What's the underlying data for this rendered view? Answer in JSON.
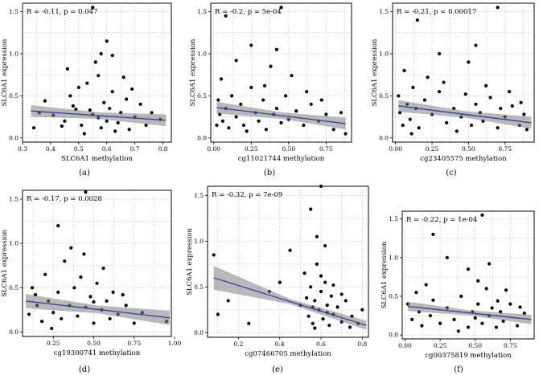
{
  "chart_data": [
    {
      "id": "a",
      "type": "scatter",
      "panel_label": "(a)",
      "annotation": "R = -0.11, p = 0.047",
      "xlabel": "SLC6A1 methylation",
      "ylabel": "SLC6A1 expression",
      "xlim": [
        0.3,
        0.83
      ],
      "ylim": [
        -0.05,
        1.6
      ],
      "xticks": [
        0.3,
        0.4,
        0.5,
        0.6,
        0.7,
        0.8
      ],
      "xtick_labels": [
        "0.3",
        "0.4",
        "0.5",
        "0.6",
        "0.7",
        "0.8"
      ],
      "yticks": [
        0.0,
        0.5,
        1.0,
        1.5
      ],
      "ytick_labels": [
        "0.0",
        "0.5",
        "1.0",
        "1.5"
      ],
      "fit": {
        "x": [
          0.33,
          0.81
        ],
        "y": [
          0.32,
          0.21
        ],
        "ci": 0.07
      },
      "points": [
        [
          0.34,
          0.12
        ],
        [
          0.38,
          0.44
        ],
        [
          0.41,
          0.27
        ],
        [
          0.45,
          0.2
        ],
        [
          0.47,
          0.5
        ],
        [
          0.49,
          0.34
        ],
        [
          0.51,
          0.15
        ],
        [
          0.53,
          0.65
        ],
        [
          0.55,
          0.28
        ],
        [
          0.56,
          0.9
        ],
        [
          0.58,
          0.12
        ],
        [
          0.59,
          0.42
        ],
        [
          0.6,
          0.2
        ],
        [
          0.61,
          0.35
        ],
        [
          0.62,
          0.55
        ],
        [
          0.64,
          0.18
        ],
        [
          0.65,
          0.3
        ],
        [
          0.66,
          0.72
        ],
        [
          0.68,
          0.1
        ],
        [
          0.7,
          0.25
        ],
        [
          0.72,
          0.4
        ],
        [
          0.74,
          0.15
        ],
        [
          0.76,
          0.3
        ],
        [
          0.79,
          0.22
        ],
        [
          0.36,
          0.3
        ],
        [
          0.52,
          0.05
        ],
        [
          0.57,
          0.24
        ],
        [
          0.63,
          0.08
        ],
        [
          0.67,
          0.46
        ],
        [
          0.48,
          0.38
        ],
        [
          0.54,
          0.33
        ],
        [
          0.6,
          1.15
        ],
        [
          0.55,
          1.55
        ],
        [
          0.58,
          1.0
        ],
        [
          0.46,
          0.82
        ],
        [
          0.69,
          0.58
        ],
        [
          0.5,
          0.6
        ],
        [
          0.62,
          0.98
        ],
        [
          0.57,
          0.74
        ],
        [
          0.44,
          0.14
        ]
      ]
    },
    {
      "id": "b",
      "type": "scatter",
      "panel_label": "(b)",
      "annotation": "R = -0.2, p = 5e-04",
      "xlabel": "cg11021744 methylation",
      "ylabel": "SLC6A1 expression",
      "xlim": [
        -0.02,
        0.92
      ],
      "ylim": [
        -0.05,
        1.6
      ],
      "xticks": [
        0.0,
        0.25,
        0.5,
        0.75
      ],
      "xtick_labels": [
        "0.00",
        "0.25",
        "0.50",
        "0.75"
      ],
      "yticks": [
        0.0,
        0.5,
        1.0,
        1.5
      ],
      "ytick_labels": [
        "0.0",
        "0.5",
        "1.0",
        "1.5"
      ],
      "fit": {
        "x": [
          0.02,
          0.88
        ],
        "y": [
          0.36,
          0.17
        ],
        "ci": 0.07
      },
      "points": [
        [
          0.02,
          0.15
        ],
        [
          0.03,
          0.45
        ],
        [
          0.04,
          0.28
        ],
        [
          0.05,
          0.7
        ],
        [
          0.06,
          0.2
        ],
        [
          0.08,
          0.35
        ],
        [
          0.1,
          0.12
        ],
        [
          0.12,
          0.5
        ],
        [
          0.15,
          0.25
        ],
        [
          0.18,
          0.4
        ],
        [
          0.2,
          0.15
        ],
        [
          0.25,
          0.6
        ],
        [
          0.28,
          0.3
        ],
        [
          0.3,
          0.2
        ],
        [
          0.33,
          0.45
        ],
        [
          0.35,
          0.1
        ],
        [
          0.38,
          0.85
        ],
        [
          0.4,
          0.28
        ],
        [
          0.42,
          0.35
        ],
        [
          0.45,
          0.18
        ],
        [
          0.48,
          0.5
        ],
        [
          0.5,
          0.22
        ],
        [
          0.55,
          0.32
        ],
        [
          0.6,
          0.15
        ],
        [
          0.65,
          0.4
        ],
        [
          0.7,
          0.2
        ],
        [
          0.75,
          0.28
        ],
        [
          0.8,
          0.1
        ],
        [
          0.85,
          0.3
        ],
        [
          0.88,
          0.05
        ],
        [
          0.08,
          1.45
        ],
        [
          0.25,
          1.1
        ],
        [
          0.45,
          1.55
        ],
        [
          0.15,
          0.92
        ],
        [
          0.52,
          0.74
        ],
        [
          0.34,
          0.62
        ],
        [
          0.22,
          0.08
        ],
        [
          0.62,
          0.55
        ],
        [
          0.72,
          0.45
        ],
        [
          0.42,
          1.05
        ]
      ]
    },
    {
      "id": "c",
      "type": "scatter",
      "panel_label": "(c)",
      "annotation": "R = -0.21, p = 0.00017",
      "xlabel": "cg23405575 methylation",
      "ylabel": "SLC6A1 expression",
      "xlim": [
        -0.02,
        0.95
      ],
      "ylim": [
        -0.05,
        1.6
      ],
      "xticks": [
        0.0,
        0.25,
        0.5,
        0.75
      ],
      "xtick_labels": [
        "0.00",
        "0.25",
        "0.50",
        "0.75"
      ],
      "yticks": [
        0.0,
        0.5,
        1.0,
        1.5
      ],
      "ytick_labels": [
        "0.0",
        "0.5",
        "1.0",
        "1.5"
      ],
      "fit": {
        "x": [
          0.02,
          0.93
        ],
        "y": [
          0.38,
          0.18
        ],
        "ci": 0.07
      },
      "points": [
        [
          0.02,
          0.5
        ],
        [
          0.03,
          0.3
        ],
        [
          0.05,
          0.15
        ],
        [
          0.06,
          0.8
        ],
        [
          0.08,
          0.4
        ],
        [
          0.1,
          0.22
        ],
        [
          0.12,
          0.6
        ],
        [
          0.14,
          0.35
        ],
        [
          0.16,
          0.12
        ],
        [
          0.2,
          0.45
        ],
        [
          0.25,
          0.28
        ],
        [
          0.3,
          0.55
        ],
        [
          0.35,
          0.18
        ],
        [
          0.4,
          0.35
        ],
        [
          0.45,
          0.25
        ],
        [
          0.5,
          0.9
        ],
        [
          0.52,
          0.15
        ],
        [
          0.55,
          0.4
        ],
        [
          0.58,
          0.3
        ],
        [
          0.6,
          0.2
        ],
        [
          0.65,
          0.48
        ],
        [
          0.7,
          0.12
        ],
        [
          0.72,
          0.35
        ],
        [
          0.75,
          0.25
        ],
        [
          0.8,
          0.38
        ],
        [
          0.85,
          0.15
        ],
        [
          0.88,
          0.28
        ],
        [
          0.9,
          0.1
        ],
        [
          0.15,
          1.4
        ],
        [
          0.3,
          1.0
        ],
        [
          0.7,
          1.55
        ],
        [
          0.55,
          1.1
        ],
        [
          0.22,
          0.72
        ],
        [
          0.62,
          0.62
        ],
        [
          0.78,
          0.55
        ],
        [
          0.42,
          0.08
        ],
        [
          0.33,
          0.66
        ],
        [
          0.48,
          0.52
        ],
        [
          0.86,
          0.42
        ],
        [
          0.11,
          0.05
        ]
      ]
    },
    {
      "id": "d",
      "type": "scatter",
      "panel_label": "(d)",
      "annotation": "R = -0.17, p = 0.0028",
      "xlabel": "cg19300741 methylation",
      "ylabel": "SLC6A1 expression",
      "xlim": [
        0.06,
        0.98
      ],
      "ylim": [
        -0.05,
        1.6
      ],
      "xticks": [
        0.25,
        0.5,
        0.75,
        1.0
      ],
      "xtick_labels": [
        "0.25",
        "0.50",
        "0.75",
        "1.00"
      ],
      "yticks": [
        0.0,
        0.5,
        1.0,
        1.5
      ],
      "ytick_labels": [
        "0.0",
        "0.5",
        "1.0",
        "1.5"
      ],
      "fit": {
        "x": [
          0.08,
          0.97
        ],
        "y": [
          0.35,
          0.16
        ],
        "ci": 0.08
      },
      "points": [
        [
          0.1,
          0.2
        ],
        [
          0.12,
          0.5
        ],
        [
          0.15,
          0.3
        ],
        [
          0.18,
          0.12
        ],
        [
          0.2,
          0.65
        ],
        [
          0.22,
          0.35
        ],
        [
          0.25,
          0.22
        ],
        [
          0.28,
          0.45
        ],
        [
          0.3,
          0.15
        ],
        [
          0.32,
          0.8
        ],
        [
          0.35,
          0.3
        ],
        [
          0.38,
          0.5
        ],
        [
          0.4,
          0.18
        ],
        [
          0.42,
          0.62
        ],
        [
          0.45,
          0.28
        ],
        [
          0.48,
          0.4
        ],
        [
          0.5,
          0.1
        ],
        [
          0.52,
          0.55
        ],
        [
          0.55,
          0.25
        ],
        [
          0.58,
          0.35
        ],
        [
          0.6,
          0.15
        ],
        [
          0.62,
          0.45
        ],
        [
          0.65,
          0.2
        ],
        [
          0.7,
          0.3
        ],
        [
          0.75,
          0.1
        ],
        [
          0.8,
          0.22
        ],
        [
          0.95,
          0.12
        ],
        [
          0.28,
          1.2
        ],
        [
          0.45,
          1.58
        ],
        [
          0.36,
          0.95
        ],
        [
          0.24,
          0.04
        ],
        [
          0.44,
          0.88
        ],
        [
          0.56,
          0.72
        ],
        [
          0.68,
          0.42
        ],
        [
          0.14,
          0.42
        ],
        [
          0.5,
          0.34
        ]
      ]
    },
    {
      "id": "e",
      "type": "scatter",
      "panel_label": "(e)",
      "annotation": "R = -0.32, p = 7e-09",
      "xlabel": "cg07466705 methylation",
      "ylabel": "SLC6A1 expression",
      "xlim": [
        0.05,
        0.83
      ],
      "ylim": [
        -0.05,
        1.6
      ],
      "xticks": [
        0.2,
        0.4,
        0.6,
        0.8
      ],
      "xtick_labels": [
        "0.2",
        "0.4",
        "0.6",
        "0.8"
      ],
      "yticks": [
        0.0,
        0.5,
        1.0,
        1.5
      ],
      "ytick_labels": [
        "0.0",
        "0.5",
        "1.0",
        "1.5"
      ],
      "fit": {
        "x": [
          0.08,
          0.82
        ],
        "y": [
          0.6,
          0.08
        ],
        "ci": [
          0.13,
          0.05
        ]
      },
      "points": [
        [
          0.08,
          0.85
        ],
        [
          0.1,
          0.2
        ],
        [
          0.15,
          0.35
        ],
        [
          0.25,
          0.1
        ],
        [
          0.35,
          0.45
        ],
        [
          0.45,
          0.9
        ],
        [
          0.5,
          0.3
        ],
        [
          0.52,
          0.65
        ],
        [
          0.54,
          0.18
        ],
        [
          0.55,
          0.5
        ],
        [
          0.56,
          0.1
        ],
        [
          0.57,
          0.35
        ],
        [
          0.58,
          0.75
        ],
        [
          0.59,
          0.25
        ],
        [
          0.6,
          0.45
        ],
        [
          0.61,
          0.15
        ],
        [
          0.62,
          0.55
        ],
        [
          0.63,
          0.3
        ],
        [
          0.64,
          0.08
        ],
        [
          0.65,
          0.4
        ],
        [
          0.66,
          0.2
        ],
        [
          0.68,
          0.28
        ],
        [
          0.7,
          0.12
        ],
        [
          0.72,
          0.35
        ],
        [
          0.75,
          0.18
        ],
        [
          0.78,
          0.1
        ],
        [
          0.55,
          1.35
        ],
        [
          0.6,
          1.6
        ],
        [
          0.58,
          1.05
        ],
        [
          0.62,
          0.95
        ],
        [
          0.53,
          0.38
        ],
        [
          0.57,
          0.05
        ],
        [
          0.6,
          0.62
        ],
        [
          0.66,
          0.52
        ],
        [
          0.7,
          0.42
        ],
        [
          0.63,
          0.22
        ],
        [
          0.56,
          0.28
        ],
        [
          0.74,
          0.06
        ],
        [
          0.8,
          0.25
        ],
        [
          0.4,
          0.55
        ]
      ]
    },
    {
      "id": "f",
      "type": "scatter",
      "panel_label": "(f)",
      "annotation": "R = -0.22, p = 1e-04",
      "xlabel": "cg00375819 methylation",
      "ylabel": "SLC6A1 expression",
      "xlim": [
        -0.02,
        0.92
      ],
      "ylim": [
        -0.05,
        1.6
      ],
      "xticks": [
        0.0,
        0.25,
        0.5,
        0.75
      ],
      "xtick_labels": [
        "0.00",
        "0.25",
        "0.50",
        "0.75"
      ],
      "yticks": [
        0.0,
        0.5,
        1.0,
        1.5
      ],
      "ytick_labels": [
        "0.0",
        "0.5",
        "1.0",
        "1.5"
      ],
      "fit": {
        "x": [
          0.02,
          0.9
        ],
        "y": [
          0.37,
          0.2
        ],
        "ci": 0.06
      },
      "points": [
        [
          0.02,
          0.4
        ],
        [
          0.05,
          0.2
        ],
        [
          0.08,
          0.55
        ],
        [
          0.1,
          0.3
        ],
        [
          0.12,
          0.12
        ],
        [
          0.15,
          0.65
        ],
        [
          0.18,
          0.25
        ],
        [
          0.2,
          0.45
        ],
        [
          0.25,
          0.15
        ],
        [
          0.3,
          0.35
        ],
        [
          0.35,
          0.2
        ],
        [
          0.4,
          0.5
        ],
        [
          0.45,
          0.1
        ],
        [
          0.48,
          0.3
        ],
        [
          0.5,
          0.22
        ],
        [
          0.52,
          0.4
        ],
        [
          0.55,
          0.15
        ],
        [
          0.58,
          0.6
        ],
        [
          0.6,
          0.25
        ],
        [
          0.62,
          0.35
        ],
        [
          0.65,
          0.1
        ],
        [
          0.68,
          0.3
        ],
        [
          0.7,
          0.18
        ],
        [
          0.75,
          0.4
        ],
        [
          0.8,
          0.12
        ],
        [
          0.85,
          0.28
        ],
        [
          0.3,
          1.0
        ],
        [
          0.55,
          1.55
        ],
        [
          0.2,
          1.3
        ],
        [
          0.45,
          0.85
        ],
        [
          0.6,
          0.92
        ],
        [
          0.72,
          0.58
        ],
        [
          0.38,
          0.05
        ],
        [
          0.52,
          0.7
        ],
        [
          0.66,
          0.44
        ],
        [
          0.82,
          0.36
        ]
      ]
    }
  ]
}
